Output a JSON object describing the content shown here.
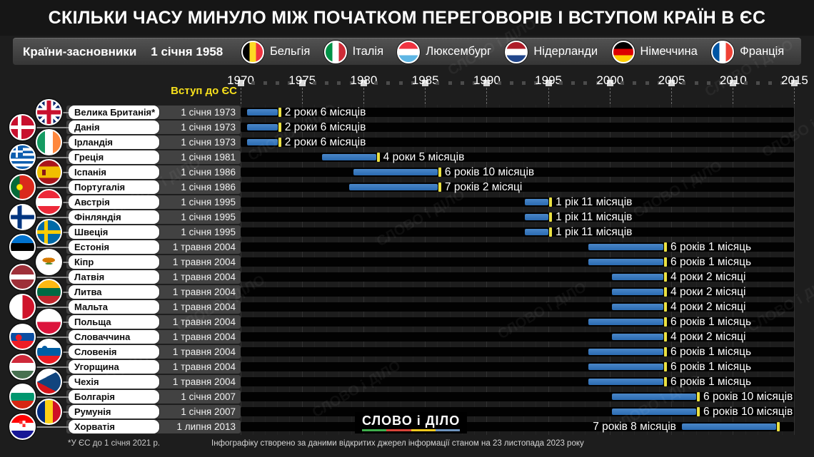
{
  "title": "СКІЛЬКИ ЧАСУ МИНУЛО МІЖ ПОЧАТКОМ ПЕРЕГОВОРІВ І ВСТУПОМ КРАЇН В ЄС",
  "founders": {
    "label": "Країни-засновники",
    "date": "1 січня 1958",
    "countries": [
      {
        "name": "Бельгія",
        "flag": "belgium"
      },
      {
        "name": "Італія",
        "flag": "italy"
      },
      {
        "name": "Люксембург",
        "flag": "luxembourg"
      },
      {
        "name": "Нідерланди",
        "flag": "netherlands"
      },
      {
        "name": "Німеччина",
        "flag": "germany"
      },
      {
        "name": "Франція",
        "flag": "france"
      }
    ]
  },
  "chart_data": {
    "type": "timeline-gantt",
    "axis": {
      "label": "Вступ до ЄС",
      "tick_years": [
        1970,
        1975,
        1980,
        1985,
        1990,
        1995,
        2000,
        2005,
        2010,
        2015
      ],
      "minor_tick_step_years": 1,
      "range": [
        1970,
        2015
      ]
    },
    "bar_meaning": "negotiation period from start of talks to EU accession",
    "rows": [
      {
        "country": "Велика Британія*",
        "flag": "uk",
        "accession_date": "1 січня 1973",
        "accession_year": 1973.0,
        "duration_label": "2 роки 6 місяців",
        "duration_months": 30,
        "label_side": "right"
      },
      {
        "country": "Данія",
        "flag": "denmark",
        "accession_date": "1 січня 1973",
        "accession_year": 1973.0,
        "duration_label": "2 роки 6 місяців",
        "duration_months": 30,
        "label_side": "right"
      },
      {
        "country": "Ірландія",
        "flag": "ireland",
        "accession_date": "1 січня 1973",
        "accession_year": 1973.0,
        "duration_label": "2 роки 6 місяців",
        "duration_months": 30,
        "label_side": "right"
      },
      {
        "country": "Греція",
        "flag": "greece",
        "accession_date": "1 січня 1981",
        "accession_year": 1981.0,
        "duration_label": "4 роки 5 місяців",
        "duration_months": 53,
        "label_side": "right"
      },
      {
        "country": "Іспанія",
        "flag": "spain",
        "accession_date": "1 січня 1986",
        "accession_year": 1986.0,
        "duration_label": "6 років 10 місяців",
        "duration_months": 82,
        "label_side": "right"
      },
      {
        "country": "Португалія",
        "flag": "portugal",
        "accession_date": "1 січня 1986",
        "accession_year": 1986.0,
        "duration_label": "7 років 2 місяці",
        "duration_months": 86,
        "label_side": "right"
      },
      {
        "country": "Австрія",
        "flag": "austria",
        "accession_date": "1 січня 1995",
        "accession_year": 1995.0,
        "duration_label": "1 рік 11 місяців",
        "duration_months": 23,
        "label_side": "right"
      },
      {
        "country": "Фінляндія",
        "flag": "finland",
        "accession_date": "1 січня 1995",
        "accession_year": 1995.0,
        "duration_label": "1 рік 11 місяців",
        "duration_months": 23,
        "label_side": "right"
      },
      {
        "country": "Швеція",
        "flag": "sweden",
        "accession_date": "1 січня 1995",
        "accession_year": 1995.0,
        "duration_label": "1 рік 11 місяців",
        "duration_months": 23,
        "label_side": "right"
      },
      {
        "country": "Естонія",
        "flag": "estonia",
        "accession_date": "1 травня 2004",
        "accession_year": 2004.333,
        "duration_label": "6 років 1 місяць",
        "duration_months": 73,
        "label_side": "right"
      },
      {
        "country": "Кіпр",
        "flag": "cyprus",
        "accession_date": "1 травня 2004",
        "accession_year": 2004.333,
        "duration_label": "6 років 1 місяць",
        "duration_months": 73,
        "label_side": "right"
      },
      {
        "country": "Латвія",
        "flag": "latvia",
        "accession_date": "1 травня 2004",
        "accession_year": 2004.333,
        "duration_label": "4 роки 2 місяці",
        "duration_months": 50,
        "label_side": "right"
      },
      {
        "country": "Литва",
        "flag": "lithuania",
        "accession_date": "1 травня 2004",
        "accession_year": 2004.333,
        "duration_label": "4 роки 2 місяці",
        "duration_months": 50,
        "label_side": "right"
      },
      {
        "country": "Мальта",
        "flag": "malta",
        "accession_date": "1 травня 2004",
        "accession_year": 2004.333,
        "duration_label": "4 роки 2 місяці",
        "duration_months": 50,
        "label_side": "right"
      },
      {
        "country": "Польща",
        "flag": "poland",
        "accession_date": "1 травня 2004",
        "accession_year": 2004.333,
        "duration_label": "6 років 1 місяць",
        "duration_months": 73,
        "label_side": "right"
      },
      {
        "country": "Словаччина",
        "flag": "slovakia",
        "accession_date": "1 травня 2004",
        "accession_year": 2004.333,
        "duration_label": "4 роки 2 місяці",
        "duration_months": 50,
        "label_side": "right"
      },
      {
        "country": "Словенія",
        "flag": "slovenia",
        "accession_date": "1 травня 2004",
        "accession_year": 2004.333,
        "duration_label": "6 років 1 місяць",
        "duration_months": 73,
        "label_side": "right"
      },
      {
        "country": "Угорщина",
        "flag": "hungary",
        "accession_date": "1 травня 2004",
        "accession_year": 2004.333,
        "duration_label": "6 років 1 місяць",
        "duration_months": 73,
        "label_side": "right"
      },
      {
        "country": "Чехія",
        "flag": "czechia",
        "accession_date": "1 травня 2004",
        "accession_year": 2004.333,
        "duration_label": "6 років 1 місяць",
        "duration_months": 73,
        "label_side": "right"
      },
      {
        "country": "Болгарія",
        "flag": "bulgaria",
        "accession_date": "1 січня 2007",
        "accession_year": 2007.0,
        "duration_label": "6 років 10 місяців",
        "duration_months": 82,
        "label_side": "right"
      },
      {
        "country": "Румунія",
        "flag": "romania",
        "accession_date": "1 січня 2007",
        "accession_year": 2007.0,
        "duration_label": "6 років 10 місяців",
        "duration_months": 82,
        "label_side": "right"
      },
      {
        "country": "Хорватія",
        "flag": "croatia",
        "accession_date": "1 липня 2013",
        "accession_year": 2013.5,
        "duration_label": "7 років 8 місяців",
        "duration_months": 92,
        "label_side": "left"
      }
    ]
  },
  "footnote": "*У ЄС до 1 січня 2021 р.",
  "source_note": "Інфографіку створено за даними відкритих джерел інформації станом на 23 листопада 2023 року",
  "logo": {
    "text": "СЛОВО і ДІЛО",
    "underline_colors": [
      "#3fae4c",
      "#d8453a",
      "#efc81f",
      "#6e93bd"
    ]
  },
  "colors": {
    "bar_blue": "#2f6fb6",
    "accession_tick_yellow": "#ece242",
    "axis_label_yellow": "#f8e11c",
    "track_black": "#020202",
    "background": "#1d1d1d"
  }
}
